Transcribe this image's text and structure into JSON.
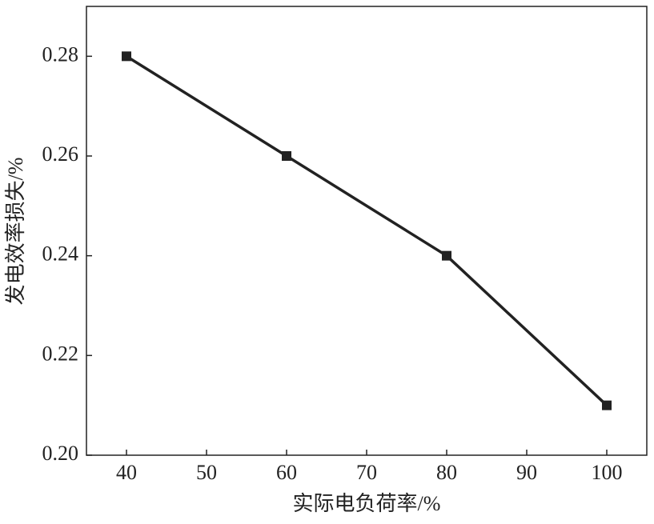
{
  "chart_data": {
    "type": "line",
    "x_label": "实际电负荷率/%",
    "y_label": "发电效率损失/%",
    "x": [
      40,
      60,
      80,
      100
    ],
    "series": [
      {
        "color": "#222222",
        "values": [
          0.28,
          0.26,
          0.24,
          0.21
        ]
      }
    ],
    "xlim": [
      35,
      105
    ],
    "xticks": [
      40,
      50,
      60,
      70,
      80,
      90,
      100
    ],
    "ylim": [
      0.2,
      0.29
    ],
    "yticks": [
      {
        "value": 0.2,
        "label": "0.20"
      },
      0.22,
      0.24,
      0.26,
      0.28
    ],
    "marker": "square"
  }
}
